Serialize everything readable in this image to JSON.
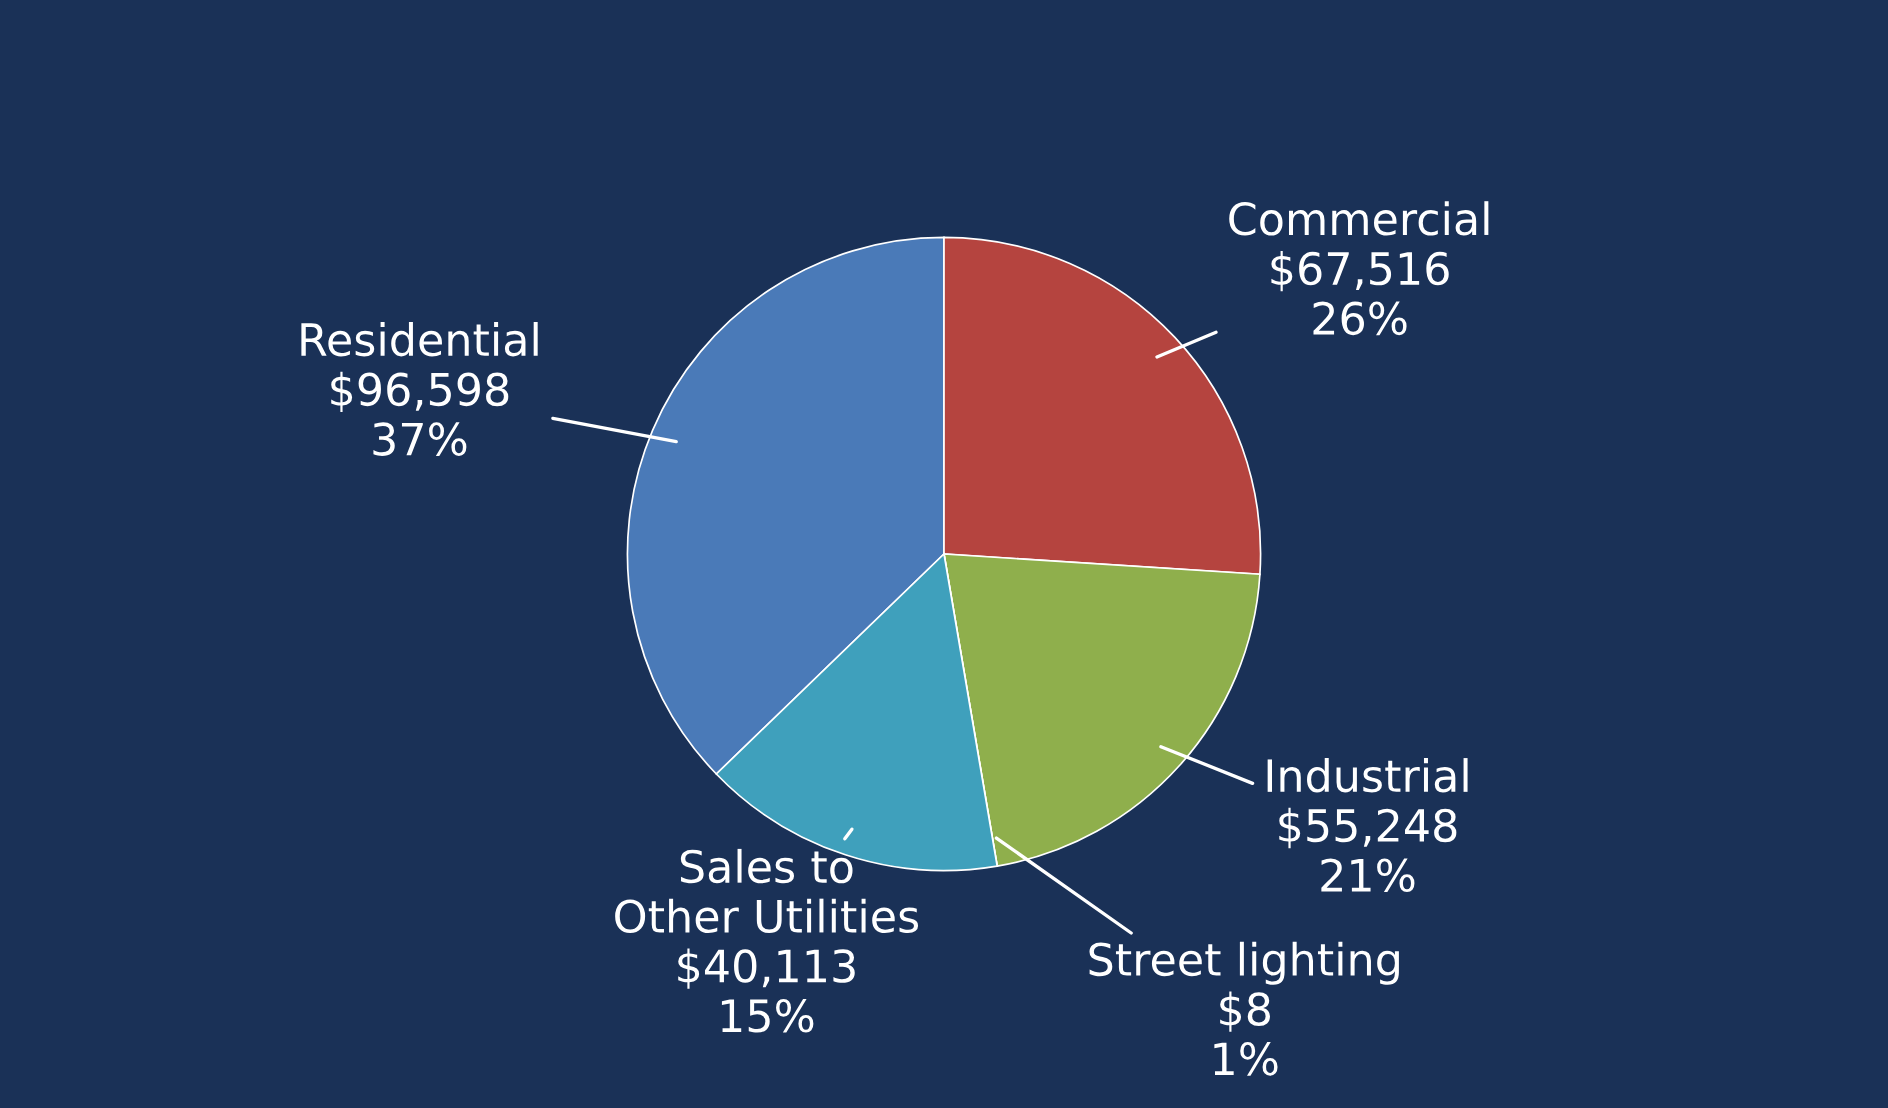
{
  "chart_data": {
    "type": "pie",
    "categories": [
      "Residential",
      "Commercial",
      "Industrial",
      "Street lighting",
      "Sales to\nOther Utilities"
    ],
    "values": [
      96598,
      67516,
      55248,
      8,
      40113
    ],
    "value_labels": [
      "$96,598\n37%",
      "$67,516\n26%",
      "$55,248\n21%",
      "$8\n1%",
      "$40,113\n15%"
    ],
    "colors": [
      "#4a7ab8",
      "#b5443f",
      "#8faf4c",
      "#d9d9d9",
      "#3fa0bc"
    ],
    "legend": false
  }
}
